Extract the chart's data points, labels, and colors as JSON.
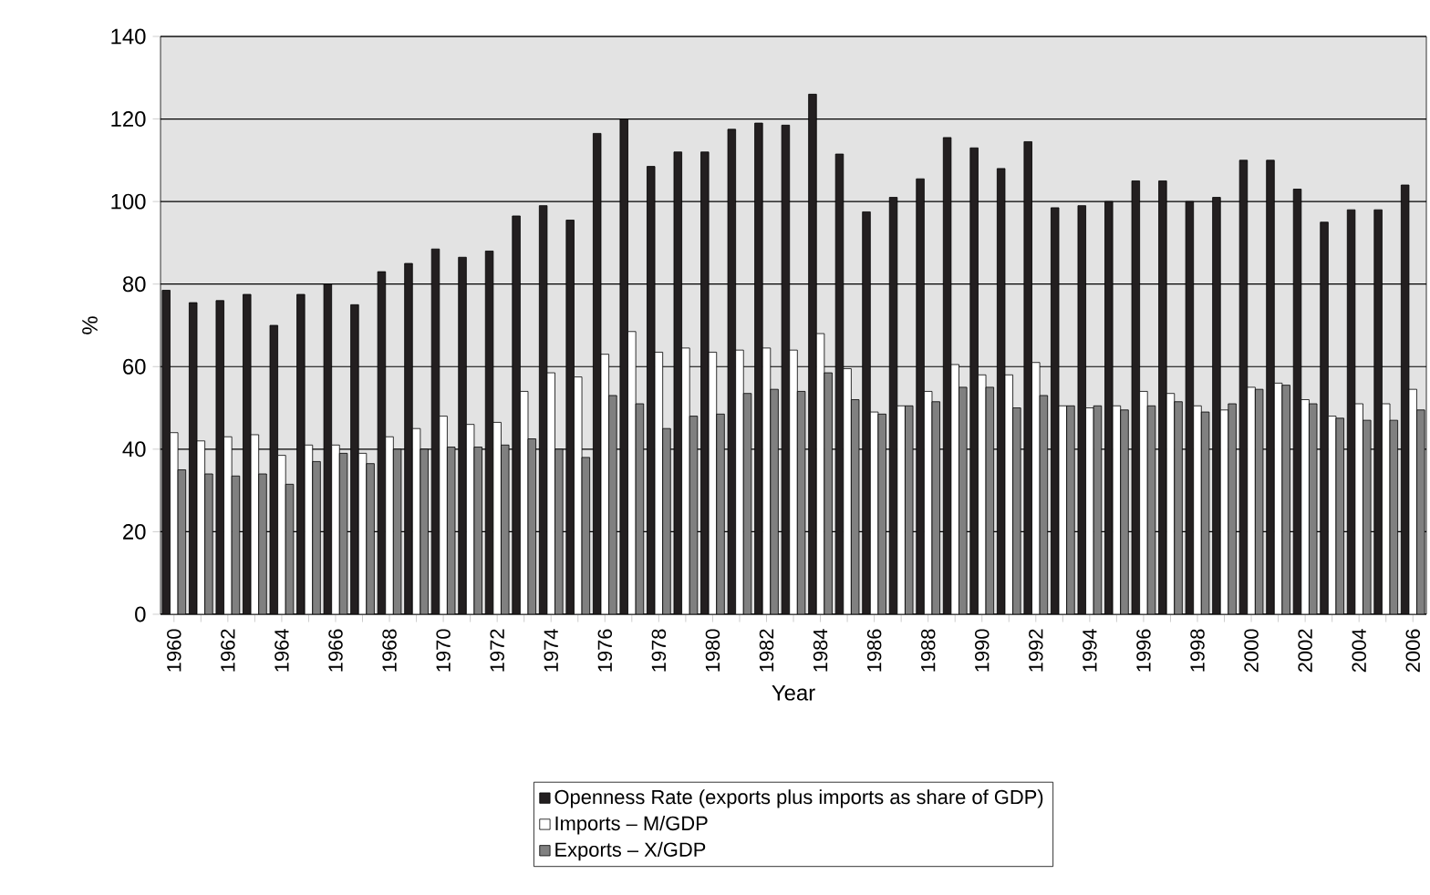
{
  "chart_data": {
    "type": "bar",
    "xlabel": "Year",
    "ylabel": "%",
    "categories": [
      "1960",
      null,
      "1962",
      null,
      "1964",
      null,
      "1966",
      null,
      "1968",
      null,
      "1970",
      null,
      "1972",
      null,
      "1974",
      null,
      "1976",
      null,
      "1978",
      null,
      "1980",
      null,
      "1982",
      null,
      "1984",
      null,
      "1986",
      null,
      "1988",
      null,
      "1990",
      null,
      "1992",
      null,
      "1994",
      null,
      "1996",
      null,
      "1998",
      null,
      "2000",
      null,
      "2002",
      null,
      "2004",
      null,
      "2006"
    ],
    "series": [
      {
        "name": "Openness Rate (exports plus imports as share of GDP)",
        "color": "#231f20",
        "values": [
          78.5,
          75.5,
          76,
          77.5,
          70,
          77.5,
          80,
          75,
          83,
          85,
          88.5,
          86.5,
          88,
          96.5,
          99,
          95.5,
          116.5,
          120,
          108.5,
          112,
          112,
          117.5,
          119,
          118.5,
          126,
          111.5,
          97.5,
          101,
          105.5,
          115.5,
          113,
          108,
          114.5,
          98.5,
          99,
          100,
          105,
          105,
          100,
          101,
          110,
          110,
          103,
          95,
          98,
          98,
          104
        ]
      },
      {
        "name": "Imports – M/GDP",
        "color": "#ffffff",
        "values": [
          44,
          42,
          43,
          43.5,
          38.5,
          41,
          41,
          39,
          43,
          45,
          48,
          46,
          46.5,
          54,
          58.5,
          57.5,
          63,
          68.5,
          63.5,
          64.5,
          63.5,
          64,
          64.5,
          64,
          68,
          59.5,
          49,
          50.5,
          54,
          60.5,
          58,
          58,
          61,
          50.5,
          50,
          50.5,
          54,
          53.5,
          50.5,
          49.5,
          55,
          56,
          52,
          48,
          51,
          51,
          54.5
        ]
      },
      {
        "name": "Exports – X/GDP",
        "color": "#808080",
        "values": [
          35,
          34,
          33.5,
          34,
          31.5,
          37,
          39,
          36.5,
          40,
          40,
          40.5,
          40.5,
          41,
          42.5,
          40,
          38,
          53,
          51,
          45,
          48,
          48.5,
          53.5,
          54.5,
          54,
          58.5,
          52,
          48.5,
          50.5,
          51.5,
          55,
          55,
          50,
          53,
          50.5,
          50.5,
          49.5,
          50.5,
          51.5,
          49,
          51,
          54.5,
          55.5,
          51,
          47.5,
          47,
          47,
          49.5
        ]
      }
    ],
    "ylim": [
      0,
      140
    ],
    "yticks": [
      0,
      20,
      40,
      60,
      80,
      100,
      120,
      140
    ],
    "grid": "y",
    "legend": "bottom"
  }
}
